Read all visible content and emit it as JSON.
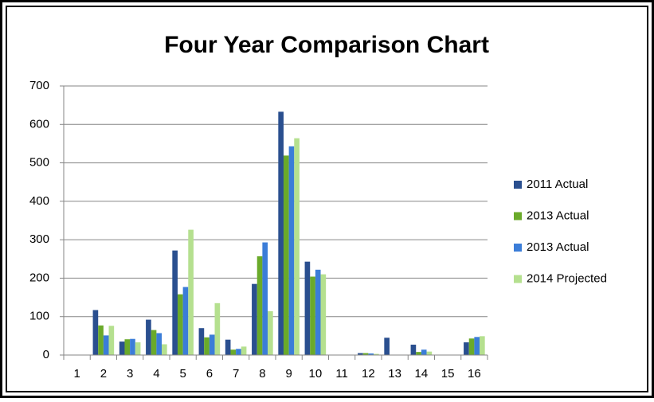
{
  "chart_data": {
    "type": "bar",
    "title": "Four Year Comparison Chart",
    "categories": [
      "1",
      "2",
      "3",
      "4",
      "5",
      "6",
      "7",
      "8",
      "9",
      "10",
      "11",
      "12",
      "13",
      "14",
      "15",
      "16"
    ],
    "series": [
      {
        "name": "2011 Actual",
        "color": "#2a4f8f",
        "values": [
          0,
          117,
          35,
          92,
          272,
          70,
          40,
          185,
          633,
          243,
          0,
          5,
          45,
          27,
          0,
          33
        ]
      },
      {
        "name": "2013 Actual",
        "color": "#6aaa2a",
        "values": [
          0,
          77,
          41,
          65,
          158,
          46,
          14,
          257,
          519,
          204,
          0,
          5,
          0,
          8,
          0,
          43
        ]
      },
      {
        "name": "2013 Actual",
        "color": "#3b7dd8",
        "values": [
          0,
          51,
          42,
          57,
          177,
          53,
          16,
          293,
          543,
          222,
          0,
          4,
          0,
          14,
          0,
          47
        ]
      },
      {
        "name": "2014 Projected",
        "color": "#b5e08f",
        "values": [
          0,
          76,
          33,
          28,
          326,
          135,
          22,
          114,
          564,
          210,
          0,
          3,
          0,
          9,
          0,
          49
        ]
      }
    ],
    "ylim": [
      0,
      700
    ],
    "yticks": [
      0,
      100,
      200,
      300,
      400,
      500,
      600,
      700
    ],
    "grid": true,
    "legend": "right"
  }
}
